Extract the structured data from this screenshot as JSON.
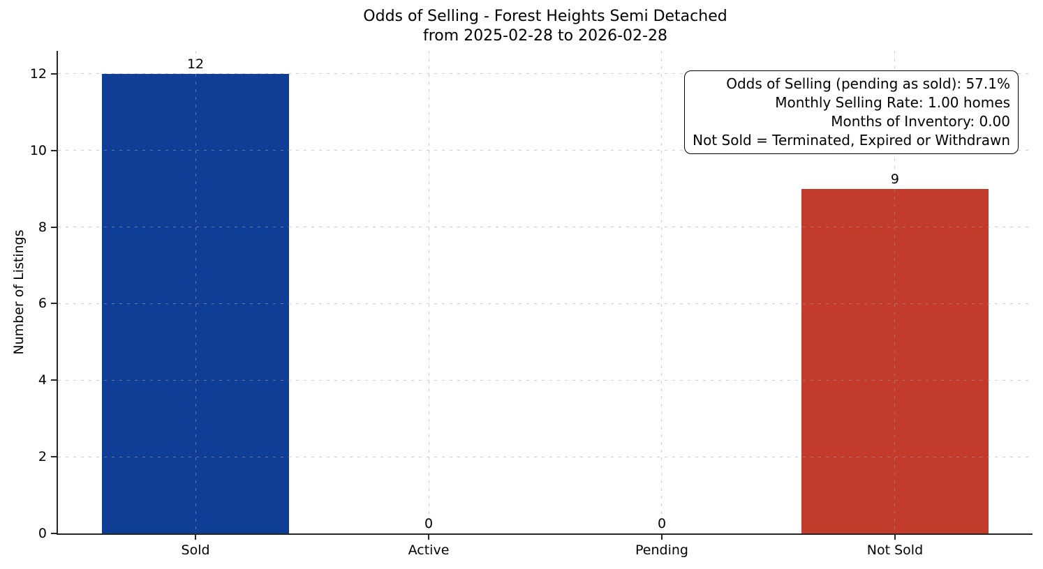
{
  "chart_data": {
    "type": "bar",
    "title": "Odds of Selling - Forest Heights Semi Detached",
    "subtitle": "from 2025-02-28 to 2026-02-28",
    "categories": [
      "Sold",
      "Active",
      "Pending",
      "Not Sold"
    ],
    "values": [
      12,
      0,
      0,
      9
    ],
    "value_labels": [
      "12",
      "0",
      "0",
      "9"
    ],
    "bar_colors": [
      "#103d96",
      "#b0b0b0",
      "#b0b0b0",
      "#c33b2c"
    ],
    "xlabel": "",
    "ylabel": "Number of Listings",
    "yticks": [
      0,
      2,
      4,
      6,
      8,
      10,
      12
    ],
    "ylim": [
      0,
      12.6
    ],
    "grid": "dashed, horizontal and vertical, drawn over bars",
    "legend_position": "none",
    "annotation": {
      "lines": [
        "Odds of Selling (pending as sold): 57.1%",
        "Monthly Selling Rate: 1.00 homes",
        "Months of Inventory: 0.00",
        "Not Sold = Terminated, Expired or Withdrawn"
      ]
    },
    "colors": {
      "sold_bar": "#103d96",
      "not_sold_bar": "#c33b2c",
      "axis": "#262626",
      "grid": "#a5a5a5",
      "text": "#000000",
      "background": "#ffffff"
    }
  }
}
